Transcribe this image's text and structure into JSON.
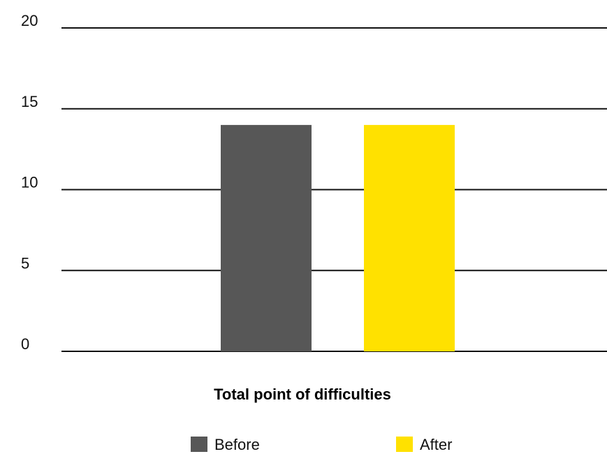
{
  "chart_data": {
    "type": "bar",
    "categories": [
      "Total point of difficulties"
    ],
    "series": [
      {
        "name": "Before",
        "values": [
          14
        ],
        "color": "#575757"
      },
      {
        "name": "After",
        "values": [
          14
        ],
        "color": "#FFE100"
      }
    ],
    "ylim": [
      0,
      20
    ],
    "y_ticks": [
      "0",
      "5",
      "10",
      "15",
      "20"
    ],
    "grid": true,
    "legend_position": "bottom"
  }
}
